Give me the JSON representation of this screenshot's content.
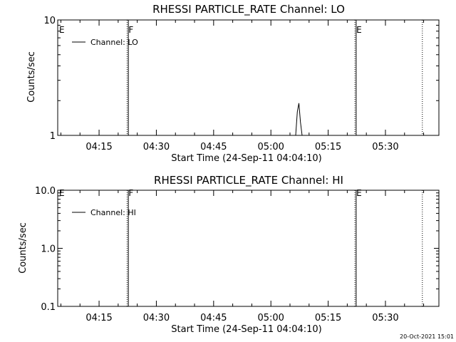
{
  "chart_data": [
    {
      "type": "line",
      "title": "RHESSI PARTICLE_RATE Channel: LO",
      "xlabel": "Start Time (24-Sep-11 04:04:10)",
      "ylabel": "Counts/sec",
      "yscale": "log",
      "ylim": [
        1,
        10
      ],
      "ytick_labels": [
        {
          "value": 1,
          "label": "1"
        },
        {
          "value": 10,
          "label": "10"
        }
      ],
      "xlim": [
        "04:04:10",
        "05:44:00"
      ],
      "xtick_labels": [
        "04:15",
        "04:30",
        "04:45",
        "05:00",
        "05:15",
        "05:30"
      ],
      "xtick_times": [
        "04:15",
        "04:30",
        "04:45",
        "05:00",
        "05:15",
        "05:30"
      ],
      "legend": {
        "position": "top-left",
        "entries": [
          "Channel: LO"
        ]
      },
      "series": [
        {
          "name": "Channel: LO",
          "points": [
            [
              "05:06:30",
              1
            ],
            [
              "05:06:55",
              1.6
            ],
            [
              "05:07:20",
              1.9
            ],
            [
              "05:07:45",
              1.3
            ],
            [
              "05:08:10",
              1
            ]
          ]
        }
      ],
      "markers": [
        {
          "label": "E",
          "time": "04:04:10",
          "style": "solid"
        },
        {
          "label": "F",
          "time": "04:22:20",
          "style": "dotted"
        },
        {
          "label": "",
          "time": "04:22:40",
          "style": "solid"
        },
        {
          "label": "E",
          "time": "05:22:00",
          "style": "dotted"
        },
        {
          "label": "",
          "time": "05:22:20",
          "style": "solid"
        },
        {
          "label": "",
          "time": "05:39:40",
          "style": "dotted"
        }
      ],
      "grid": false
    },
    {
      "type": "line",
      "title": "RHESSI PARTICLE_RATE Channel: HI",
      "xlabel": "Start Time (24-Sep-11 04:04:10)",
      "ylabel": "Counts/sec",
      "yscale": "log",
      "ylim": [
        0.1,
        10
      ],
      "ytick_labels": [
        {
          "value": 0.1,
          "label": "0.1"
        },
        {
          "value": 1,
          "label": "1.0"
        },
        {
          "value": 10,
          "label": "10.0"
        }
      ],
      "xlim": [
        "04:04:10",
        "05:44:00"
      ],
      "xtick_labels": [
        "04:15",
        "04:30",
        "04:45",
        "05:00",
        "05:15",
        "05:30"
      ],
      "xtick_times": [
        "04:15",
        "04:30",
        "04:45",
        "05:00",
        "05:15",
        "05:30"
      ],
      "legend": {
        "position": "top-left",
        "entries": [
          "Channel: HI"
        ]
      },
      "series": [
        {
          "name": "Channel: HI",
          "points": []
        }
      ],
      "markers": [
        {
          "label": "E",
          "time": "04:04:10",
          "style": "solid"
        },
        {
          "label": "F",
          "time": "04:22:20",
          "style": "dotted"
        },
        {
          "label": "",
          "time": "04:22:40",
          "style": "solid"
        },
        {
          "label": "E",
          "time": "05:22:00",
          "style": "dotted"
        },
        {
          "label": "",
          "time": "05:22:20",
          "style": "solid"
        },
        {
          "label": "",
          "time": "05:39:40",
          "style": "dotted"
        }
      ],
      "grid": false
    }
  ],
  "footer": {
    "timestamp": "20-Oct-2021 15:01"
  },
  "colors": {
    "background": "#ffffff",
    "foreground": "#000000"
  }
}
